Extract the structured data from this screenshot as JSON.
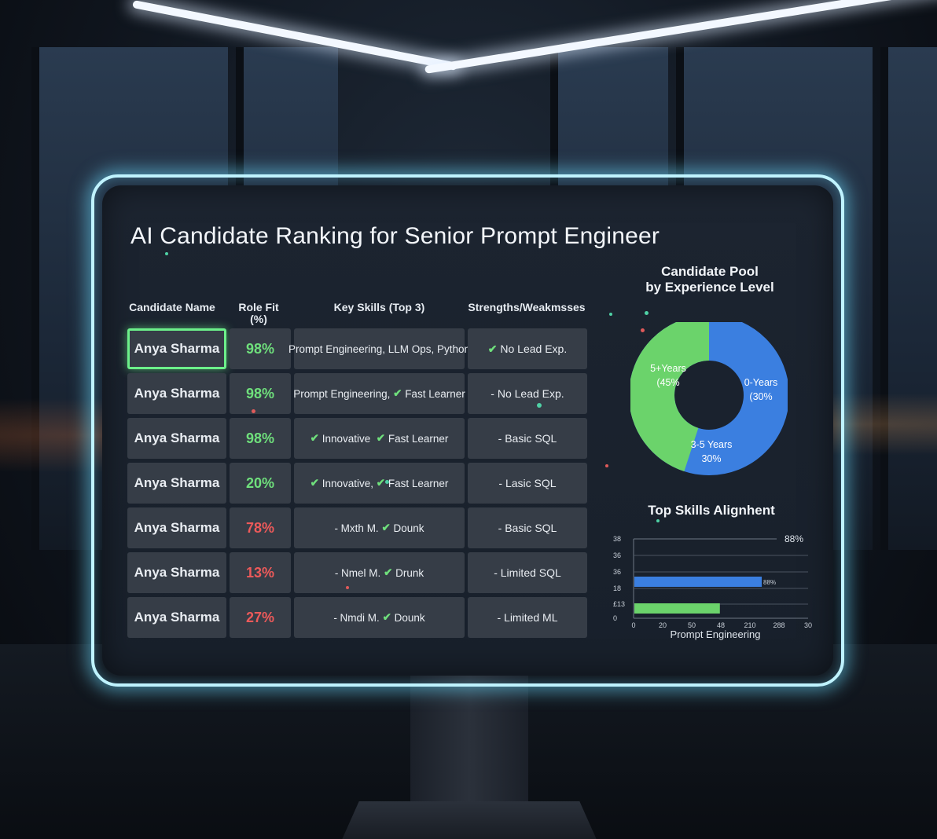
{
  "page": {
    "title": "AI Candidate Ranking for Senior Prompt Engineer"
  },
  "table": {
    "headers": {
      "name": "Candidate Name",
      "fit_line1": "Role Fit",
      "fit_line2": "(%)",
      "skills": "Key Skills (Top 3)",
      "strengths": "Strengths/Weakmsses"
    },
    "rows": [
      {
        "name": "Anya Sharma",
        "fit": "98%",
        "fit_color": "#6fe07c",
        "skills": "Prompt Engineering, LLM Ops, Python",
        "strength_check": "✔",
        "strength": "No Lead Exp.",
        "selected": true
      },
      {
        "name": "Anya Sharma",
        "fit": "98%",
        "fit_color": "#6fe07c",
        "skills_a": "Prompt Engineering,",
        "skills_check": "✔",
        "skills_b": "Fast Learner",
        "strength": "- No Lead Exp."
      },
      {
        "name": "Anya Sharma",
        "fit": "98%",
        "fit_color": "#6fe07c",
        "skills_check_a": "✔",
        "skills_a": "Innovative",
        "skills_check_b": "✔",
        "skills_b": "Fast Learner",
        "strength": "- Basic SQL"
      },
      {
        "name": "Anya Sharma",
        "fit": "20%",
        "fit_color": "#6fe07c",
        "skills_check_a": "✔",
        "skills_a": "Innovative,",
        "skills_check_b": "✔",
        "skills_b": "Fast Learner",
        "strength": "- Lasic SQL"
      },
      {
        "name": "Anya Sharma",
        "fit": "78%",
        "fit_color": "#ee5a5a",
        "skills_a": "- Mxth M.",
        "skills_check": "✔",
        "skills_b": "Dounk",
        "strength": "- Basic SQL"
      },
      {
        "name": "Anya Sharma",
        "fit": "13%",
        "fit_color": "#ee5a5a",
        "skills_a": "- Nmel M.",
        "skills_check": "✔",
        "skills_b": "Drunk",
        "strength": "- Limited SQL"
      },
      {
        "name": "Anya Sharma",
        "fit": "27%",
        "fit_color": "#ee5a5a",
        "skills_a": "- Nmdi M.",
        "skills_check": "✔",
        "skills_b": "Dounk",
        "strength": "- Limited ML"
      }
    ]
  },
  "donut": {
    "title_line1": "Candidate Pool",
    "title_line2": "by Experience Level",
    "labels": {
      "seg_green_1": "5+Years",
      "seg_green_2": "(45%",
      "seg_blue_top_1": "0-Years",
      "seg_blue_top_2": "(30%",
      "seg_blue_bottom_1": "3-5 Years",
      "seg_blue_bottom_2": "30%"
    },
    "colors": {
      "blue": "#3b7fe0",
      "green": "#6bd36b"
    },
    "green_fraction": 0.45
  },
  "chart_data": {
    "type": "bar",
    "title": "Top Skills Alignhent",
    "xlabel": "Prompt Engineering",
    "y_ticks": [
      "38",
      "36",
      "36",
      "18",
      "£13",
      "0"
    ],
    "x_ticks": [
      "0",
      "20",
      "50",
      "48",
      "210",
      "288",
      "30"
    ],
    "annotation_top": "88%",
    "series": [
      {
        "value_label": "88%",
        "color": "#3b7fe0",
        "fraction": 0.73
      },
      {
        "color": "#6bd36b",
        "fraction": 0.49
      }
    ]
  }
}
